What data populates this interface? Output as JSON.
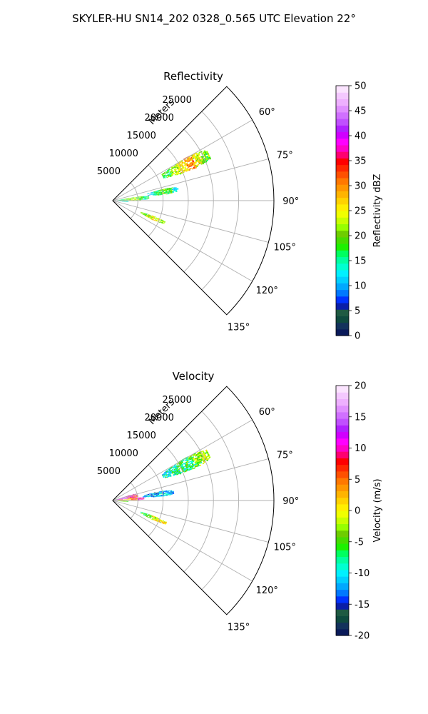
{
  "figure": {
    "title": "SKYLER-HU  SN14_202  0328_0.565 UTC Elevation 22°"
  },
  "chart_data": [
    {
      "type": "polar-sector",
      "title": "Reflectivity",
      "radial_label": "Meters",
      "r_max": 32000,
      "r_ticks": [
        5000,
        10000,
        15000,
        20000,
        25000
      ],
      "r_tick_labels": [
        "5000",
        "10000",
        "15000",
        "20000",
        "25000"
      ],
      "theta_range_deg": [
        45,
        135
      ],
      "theta_ticks_deg": [
        60,
        75,
        90,
        105,
        120,
        135
      ],
      "theta_tick_labels": [
        "60°",
        "75°",
        "90°",
        "105°",
        "120°",
        "135°"
      ],
      "grid": true,
      "colorbar": {
        "label": "Reflectivity dBZ",
        "min": 0,
        "max": 50,
        "ticks": [
          0,
          5,
          10,
          15,
          20,
          25,
          30,
          35,
          40,
          45,
          50
        ],
        "tick_labels": [
          "0",
          "5",
          "10",
          "15",
          "20",
          "25",
          "30",
          "35",
          "40",
          "45",
          "50"
        ],
        "colors": [
          "#0a1a5a",
          "#13325c",
          "#0f4a3e",
          "#1f5a42",
          "#0a1ea8",
          "#0032ff",
          "#0078ff",
          "#00a8ff",
          "#00cfff",
          "#00f0ff",
          "#00ffd0",
          "#00ffa0",
          "#00ff60",
          "#1ef000",
          "#46dc00",
          "#6ecd00",
          "#96ff00",
          "#c8ff00",
          "#f0ff00",
          "#ffee00",
          "#ffd200",
          "#ffb400",
          "#ff9600",
          "#ff7800",
          "#ff5000",
          "#ff2800",
          "#ff0000",
          "#ff0070",
          "#ff00c8",
          "#ff00ff",
          "#d000ff",
          "#b020ff",
          "#c050ff",
          "#d070ff",
          "#e090ff",
          "#eeb0ff",
          "#f4c8ff",
          "#fbe4ff"
        ]
      },
      "echoes": [
        {
          "theta_deg": 64,
          "r": [
            11000,
            21000
          ],
          "half_width_deg": 4.5,
          "values": [
            18,
            22,
            26,
            30,
            24,
            20
          ]
        },
        {
          "theta_deg": 80,
          "r": [
            7000,
            13000
          ],
          "half_width_deg": 3,
          "values": [
            12,
            16,
            20,
            18,
            14
          ]
        },
        {
          "theta_deg": 85,
          "r": [
            1000,
            7000
          ],
          "half_width_deg": 4,
          "values": [
            17,
            20,
            22,
            19,
            15
          ]
        },
        {
          "theta_deg": 93,
          "r": [
            500,
            3000
          ],
          "half_width_deg": 2,
          "values": [
            10,
            13,
            12
          ]
        },
        {
          "theta_deg": 113,
          "r": [
            6000,
            11000
          ],
          "half_width_deg": 2.5,
          "values": [
            20,
            23,
            25,
            22
          ]
        }
      ]
    },
    {
      "type": "polar-sector",
      "title": "Velocity",
      "radial_label": "Meters",
      "r_max": 32000,
      "r_ticks": [
        5000,
        10000,
        15000,
        20000,
        25000
      ],
      "r_tick_labels": [
        "5000",
        "10000",
        "15000",
        "20000",
        "25000"
      ],
      "theta_range_deg": [
        45,
        135
      ],
      "theta_ticks_deg": [
        60,
        75,
        90,
        105,
        120,
        135
      ],
      "theta_tick_labels": [
        "60°",
        "75°",
        "90°",
        "105°",
        "120°",
        "135°"
      ],
      "grid": true,
      "colorbar": {
        "label": "Velocity (m/s)",
        "min": -20,
        "max": 20,
        "ticks": [
          -20,
          -15,
          -10,
          -5,
          0,
          5,
          10,
          15,
          20
        ],
        "tick_labels": [
          "-20",
          "-15",
          "-10",
          "-5",
          "0",
          "5",
          "10",
          "15",
          "20"
        ],
        "colors": [
          "#0a1a5a",
          "#13325c",
          "#0f4a3e",
          "#1f5a42",
          "#0a1ea8",
          "#0032ff",
          "#0078ff",
          "#00a8ff",
          "#00cfff",
          "#00f0ff",
          "#00ffd0",
          "#00ffa0",
          "#00ff60",
          "#1ef000",
          "#46dc00",
          "#6ecd00",
          "#96ff00",
          "#c8ff00",
          "#f0ff00",
          "#ffee00",
          "#ffd200",
          "#ffb400",
          "#ff9600",
          "#ff7800",
          "#ff5000",
          "#ff2800",
          "#ff0000",
          "#ff0070",
          "#ff00c8",
          "#ff00ff",
          "#d000ff",
          "#b020ff",
          "#c050ff",
          "#d070ff",
          "#e090ff",
          "#eeb0ff",
          "#f4c8ff",
          "#fbe4ff"
        ]
      },
      "echoes": [
        {
          "theta_deg": 64,
          "r": [
            11000,
            21000
          ],
          "half_width_deg": 4.5,
          "values": [
            -9,
            -8,
            -7,
            -6,
            -4,
            -2
          ]
        },
        {
          "theta_deg": 82,
          "r": [
            6000,
            12000
          ],
          "half_width_deg": 3,
          "values": [
            -12,
            -13,
            -11,
            -12
          ]
        },
        {
          "theta_deg": 78,
          "r": [
            500,
            5000
          ],
          "half_width_deg": 6,
          "values": [
            12,
            14,
            10,
            8
          ]
        },
        {
          "theta_deg": 86,
          "r": [
            1000,
            6000
          ],
          "half_width_deg": 3,
          "values": [
            4,
            2,
            6,
            10
          ]
        },
        {
          "theta_deg": 94,
          "r": [
            500,
            3000
          ],
          "half_width_deg": 2,
          "values": [
            -6,
            -4,
            -5
          ]
        },
        {
          "theta_deg": 113,
          "r": [
            6000,
            11500
          ],
          "half_width_deg": 2.5,
          "values": [
            -6,
            -4,
            -2,
            0,
            1
          ]
        }
      ]
    }
  ]
}
